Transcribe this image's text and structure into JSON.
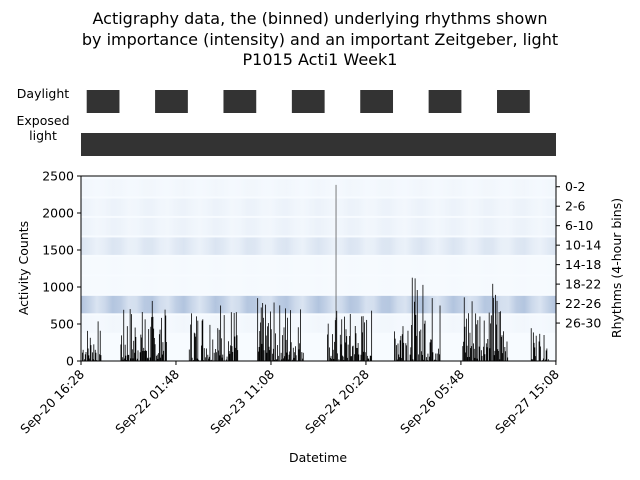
{
  "figure": {
    "title_lines": [
      "Actigraphy data, the (binned) underlying rhythms shown",
      "by importance (intensity) and an important Zeitgeber, light",
      "P1015 Acti1 Week1"
    ],
    "daylight_label": "Daylight",
    "exposed_light_label_lines": [
      "Exposed",
      "light"
    ]
  },
  "colors": {
    "dark_bar": "#333333",
    "activity_line": "#000000",
    "heat_low": "#f7fbff",
    "heat_high": "#6f8fbf"
  },
  "chart_data": {
    "type": "bar",
    "title": "Actigraphy data, the (binned) underlying rhythms shown by importance (intensity) and an important Zeitgeber, light — P1015 Acti1 Week1",
    "xlabel": "Datetime",
    "ylabel": "Activity Counts",
    "y2label": "Rhythms (4-hour bins)",
    "ylim": [
      0,
      2500
    ],
    "yticks": [
      0,
      500,
      1000,
      1500,
      2000,
      2500
    ],
    "x_start": "Sep-20 16:28",
    "x_end": "Sep-27 15:08",
    "xlim_hours": [
      0,
      166.7
    ],
    "xticks": [
      {
        "h": 0,
        "label": "Sep-20 16:28"
      },
      {
        "h": 33.33,
        "label": "Sep-22 01:48"
      },
      {
        "h": 66.67,
        "label": "Sep-23 11:08"
      },
      {
        "h": 100,
        "label": "Sep-24 20:28"
      },
      {
        "h": 133.33,
        "label": "Sep-26 05:48"
      },
      {
        "h": 166.67,
        "label": "Sep-27 15:08"
      }
    ],
    "rhythm_bins": [
      "0-2",
      "2-6",
      "6-10",
      "10-14",
      "14-18",
      "18-22",
      "22-26",
      "26-30"
    ],
    "rhythm_intensity": [
      0.05,
      0.1,
      0.1,
      0.25,
      0.02,
      0.02,
      0.6,
      0.05
    ],
    "daylight_blocks_hours": [
      [
        2,
        13.5
      ],
      [
        26,
        37.5
      ],
      [
        50,
        61.5
      ],
      [
        74,
        85.5
      ],
      [
        98,
        109.5
      ],
      [
        122,
        133.5
      ],
      [
        146,
        157.5
      ]
    ],
    "exposed_light_hours": [
      [
        0,
        168
      ]
    ],
    "activity_bursts": [
      {
        "start": 0.5,
        "end": 7,
        "peak": 540
      },
      {
        "start": 14,
        "end": 30,
        "peak": 830
      },
      {
        "start": 38,
        "end": 55,
        "peak": 820
      },
      {
        "start": 62,
        "end": 78,
        "peak": 880
      },
      {
        "start": 86,
        "end": 102,
        "peak": 720
      },
      {
        "start": 110,
        "end": 126,
        "peak": 1170
      },
      {
        "start": 134,
        "end": 150,
        "peak": 1110
      },
      {
        "start": 158,
        "end": 164,
        "peak": 500
      }
    ],
    "spike": {
      "h": 89.5,
      "value": 2380
    }
  }
}
